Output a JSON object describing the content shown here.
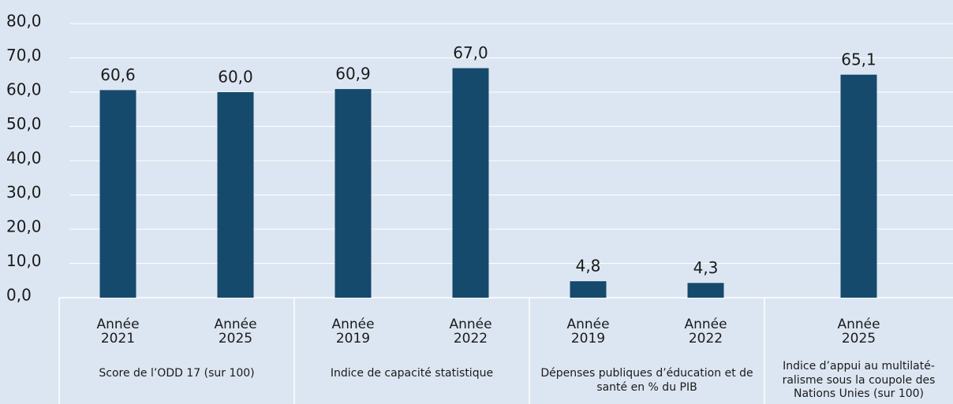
{
  "chart_data": {
    "type": "bar",
    "color": "#164a6c",
    "grid": true,
    "ylim": [
      0,
      80
    ],
    "yticks": [
      {
        "value": 0,
        "label": "0,0"
      },
      {
        "value": 10,
        "label": "10,0"
      },
      {
        "value": 20,
        "label": "20,0"
      },
      {
        "value": 30,
        "label": "30,0"
      },
      {
        "value": 40,
        "label": "40,0"
      },
      {
        "value": 50,
        "label": "50,0"
      },
      {
        "value": 60,
        "label": "60,0"
      },
      {
        "value": 70,
        "label": "70,0"
      },
      {
        "value": 80,
        "label": "80,0"
      }
    ],
    "groups": [
      {
        "name": "Score de l’ODD 17 (sur 100)",
        "categories": [
          "Année 2021",
          "Année 2025"
        ],
        "values": [
          60.6,
          60.0
        ],
        "value_labels": [
          "60,6",
          "60,0"
        ]
      },
      {
        "name": "Indice de capacité statistique",
        "categories": [
          "Année 2019",
          "Année 2022"
        ],
        "values": [
          60.9,
          67.0
        ],
        "value_labels": [
          "60,9",
          "67,0"
        ]
      },
      {
        "name": "Dépenses publiques d’éducation et de santé en % du PIB",
        "categories": [
          "Année 2019",
          "Année 2022"
        ],
        "values": [
          4.8,
          4.3
        ],
        "value_labels": [
          "4,8",
          "4,3"
        ]
      },
      {
        "name": "Indice d’appui au multilaté­ralisme sous la coupole des Nations Unies (sur 100)",
        "categories": [
          "Année 2025"
        ],
        "values": [
          65.1
        ],
        "value_labels": [
          "65,1"
        ]
      }
    ]
  }
}
